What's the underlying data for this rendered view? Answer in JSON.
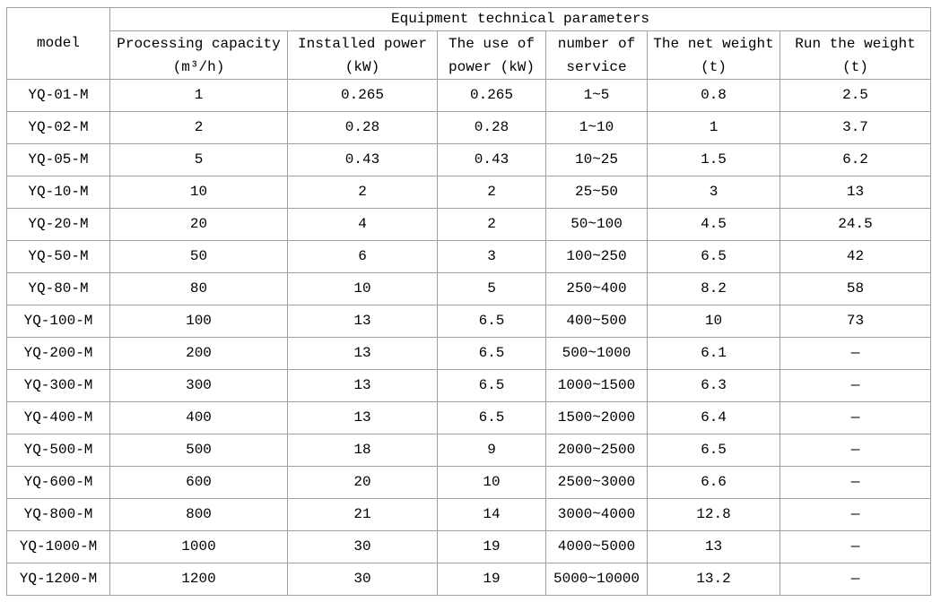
{
  "table": {
    "title": "Equipment technical parameters",
    "model_header": "model",
    "columns": [
      {
        "line1": "Processing capacity",
        "line2": "(m³/h)"
      },
      {
        "line1": "Installed power",
        "line2": "(kW)"
      },
      {
        "line1": "The use of",
        "line2": "power (kW)"
      },
      {
        "line1": "number of",
        "line2": "service"
      },
      {
        "line1": "The net weight",
        "line2": "(t)"
      },
      {
        "line1": "Run the weight",
        "line2": "(t)"
      }
    ],
    "rows": [
      [
        "YQ-01-M",
        "1",
        "0.265",
        "0.265",
        "1~5",
        "0.8",
        "2.5"
      ],
      [
        "YQ-02-M",
        "2",
        "0.28",
        "0.28",
        "1~10",
        "1",
        "3.7"
      ],
      [
        "YQ-05-M",
        "5",
        "0.43",
        "0.43",
        "10~25",
        "1.5",
        "6.2"
      ],
      [
        "YQ-10-M",
        "10",
        "2",
        "2",
        "25~50",
        "3",
        "13"
      ],
      [
        "YQ-20-M",
        "20",
        "4",
        "2",
        "50~100",
        "4.5",
        "24.5"
      ],
      [
        "YQ-50-M",
        "50",
        "6",
        "3",
        "100~250",
        "6.5",
        "42"
      ],
      [
        "YQ-80-M",
        "80",
        "10",
        "5",
        "250~400",
        "8.2",
        "58"
      ],
      [
        "YQ-100-M",
        "100",
        "13",
        "6.5",
        "400~500",
        "10",
        "73"
      ],
      [
        "YQ-200-M",
        "200",
        "13",
        "6.5",
        "500~1000",
        "6.1",
        "—"
      ],
      [
        "YQ-300-M",
        "300",
        "13",
        "6.5",
        "1000~1500",
        "6.3",
        "—"
      ],
      [
        "YQ-400-M",
        "400",
        "13",
        "6.5",
        "1500~2000",
        "6.4",
        "—"
      ],
      [
        "YQ-500-M",
        "500",
        "18",
        "9",
        "2000~2500",
        "6.5",
        "—"
      ],
      [
        "YQ-600-M",
        "600",
        "20",
        "10",
        "2500~3000",
        "6.6",
        "—"
      ],
      [
        "YQ-800-M",
        "800",
        "21",
        "14",
        "3000~4000",
        "12.8",
        "—"
      ],
      [
        "YQ-1000-M",
        "1000",
        "30",
        "19",
        "4000~5000",
        "13",
        "—"
      ],
      [
        "YQ-1200-M",
        "1200",
        "30",
        "19",
        "5000~10000",
        "13.2",
        "—"
      ]
    ]
  },
  "colors": {
    "border": "#a0a0a0",
    "text": "#000000",
    "background": "#ffffff"
  },
  "chart_data": {
    "type": "table",
    "title": "Equipment technical parameters",
    "columns": [
      "model",
      "Processing capacity (m³/h)",
      "Installed power (kW)",
      "The use of power (kW)",
      "number of service",
      "The net weight (t)",
      "Run the weight (t)"
    ],
    "rows": [
      [
        "YQ-01-M",
        "1",
        "0.265",
        "0.265",
        "1~5",
        "0.8",
        "2.5"
      ],
      [
        "YQ-02-M",
        "2",
        "0.28",
        "0.28",
        "1~10",
        "1",
        "3.7"
      ],
      [
        "YQ-05-M",
        "5",
        "0.43",
        "0.43",
        "10~25",
        "1.5",
        "6.2"
      ],
      [
        "YQ-10-M",
        "10",
        "2",
        "2",
        "25~50",
        "3",
        "13"
      ],
      [
        "YQ-20-M",
        "20",
        "4",
        "2",
        "50~100",
        "4.5",
        "24.5"
      ],
      [
        "YQ-50-M",
        "50",
        "6",
        "3",
        "100~250",
        "6.5",
        "42"
      ],
      [
        "YQ-80-M",
        "80",
        "10",
        "5",
        "250~400",
        "8.2",
        "58"
      ],
      [
        "YQ-100-M",
        "100",
        "13",
        "6.5",
        "400~500",
        "10",
        "73"
      ],
      [
        "YQ-200-M",
        "200",
        "13",
        "6.5",
        "500~1000",
        "6.1",
        "—"
      ],
      [
        "YQ-300-M",
        "300",
        "13",
        "6.5",
        "1000~1500",
        "6.3",
        "—"
      ],
      [
        "YQ-400-M",
        "400",
        "13",
        "6.5",
        "1500~2000",
        "6.4",
        "—"
      ],
      [
        "YQ-500-M",
        "500",
        "18",
        "9",
        "2000~2500",
        "6.5",
        "—"
      ],
      [
        "YQ-600-M",
        "600",
        "20",
        "10",
        "2500~3000",
        "6.6",
        "—"
      ],
      [
        "YQ-800-M",
        "800",
        "21",
        "14",
        "3000~4000",
        "12.8",
        "—"
      ],
      [
        "YQ-1000-M",
        "1000",
        "30",
        "19",
        "4000~5000",
        "13",
        "—"
      ],
      [
        "YQ-1200-M",
        "1200",
        "30",
        "19",
        "5000~10000",
        "13.2",
        "—"
      ]
    ]
  }
}
